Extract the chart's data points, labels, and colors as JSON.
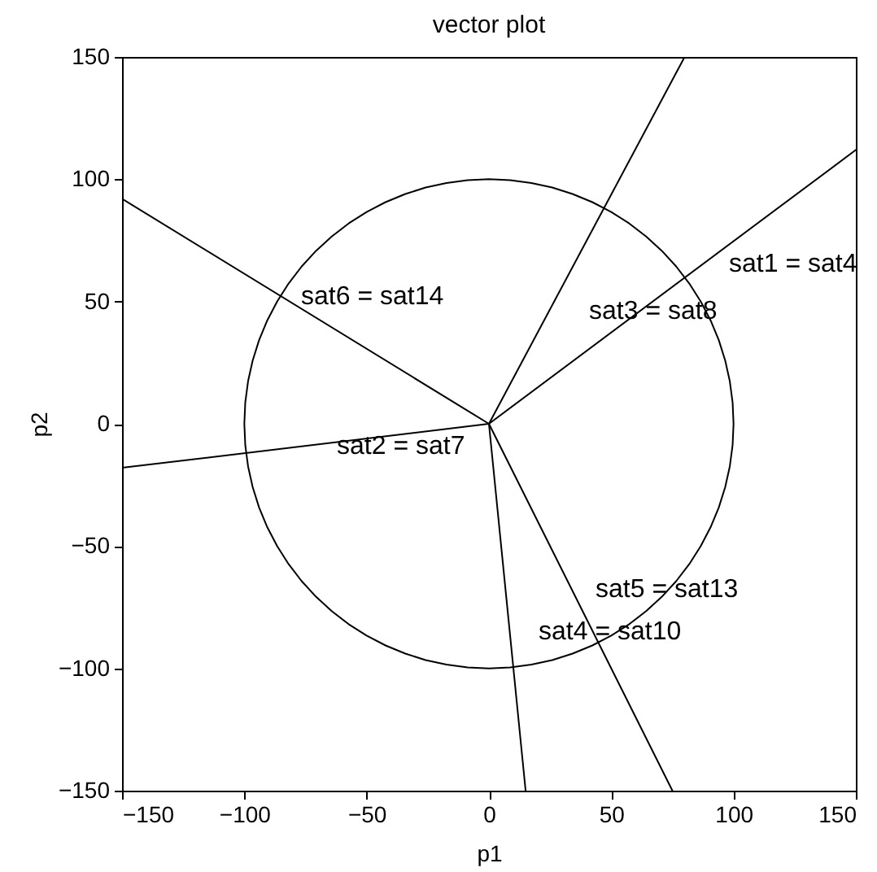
{
  "chart_data": {
    "type": "line",
    "title": "vector plot",
    "xlabel": "p1",
    "ylabel": "p2",
    "xlim": [
      -150,
      150
    ],
    "ylim": [
      -150,
      150
    ],
    "xticks": [
      -150,
      -100,
      -50,
      0,
      50,
      100,
      150
    ],
    "yticks": [
      -150,
      -100,
      -50,
      0,
      50,
      100,
      150
    ],
    "line_style": "solid",
    "series": [
      {
        "color": "#000000",
        "x": [
          0,
          150
        ],
        "values": [
          0,
          112
        ]
      },
      {
        "color": "#000000",
        "x": [
          0,
          80
        ],
        "values": [
          0,
          150
        ]
      },
      {
        "color": "#000000",
        "x": [
          0,
          -150
        ],
        "values": [
          0,
          92
        ]
      },
      {
        "color": "#000000",
        "x": [
          0,
          -150
        ],
        "values": [
          0,
          -18
        ]
      },
      {
        "color": "#000000",
        "x": [
          0,
          15
        ],
        "values": [
          0,
          -150
        ]
      },
      {
        "color": "#000000",
        "x": [
          0,
          75
        ],
        "values": [
          0,
          -150
        ]
      }
    ],
    "annotations": [
      "sat1 = sat4",
      "sat3 = sat8",
      "sat6 = sat14",
      "sat2 = sat7",
      "sat5 = sat13",
      "sat4 = sat10"
    ]
  }
}
